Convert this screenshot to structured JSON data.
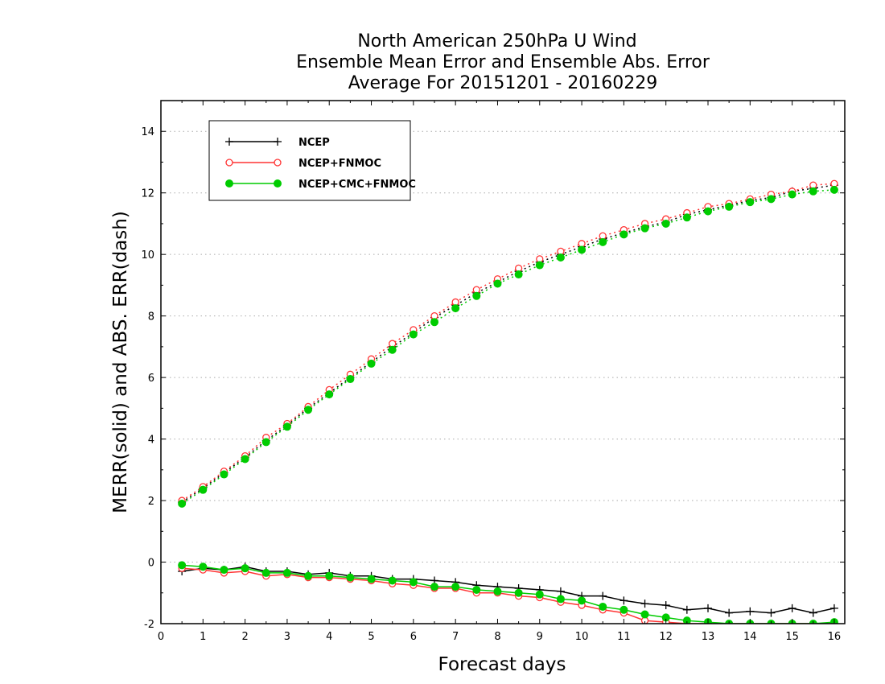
{
  "chart_data": {
    "type": "line",
    "title_lines": [
      "North American 250hPa U Wind",
      "Ensemble Mean Error and Ensemble Abs. Error",
      "Average For 20151201 - 20160229"
    ],
    "xlabel": "Forecast days",
    "ylabel": "MERR(solid) and ABS. ERR(dash)",
    "xlim": [
      0,
      16.25
    ],
    "ylim": [
      -2,
      15
    ],
    "xticks": [
      0,
      1,
      2,
      3,
      4,
      5,
      6,
      7,
      8,
      9,
      10,
      11,
      12,
      13,
      14,
      15,
      16
    ],
    "yticks": [
      -2,
      0,
      2,
      4,
      6,
      8,
      10,
      12,
      14
    ],
    "grid": "horizontal dotted",
    "legend_position": "top-left",
    "x": [
      0.5,
      1,
      1.5,
      2,
      2.5,
      3,
      3.5,
      4,
      4.5,
      5,
      5.5,
      6,
      6.5,
      7,
      7.5,
      8,
      8.5,
      9,
      9.5,
      10,
      10.5,
      11,
      11.5,
      12,
      12.5,
      13,
      13.5,
      14,
      14.5,
      15,
      15.5,
      16
    ],
    "series": [
      {
        "name": "NCEP",
        "color": "#000000",
        "marker": "plus",
        "abs_err": [
          1.95,
          2.4,
          2.9,
          3.4,
          3.95,
          4.45,
          5.0,
          5.5,
          6.0,
          6.5,
          7.0,
          7.45,
          7.95,
          8.35,
          8.75,
          9.1,
          9.45,
          9.75,
          10.0,
          10.25,
          10.5,
          10.7,
          10.9,
          11.05,
          11.3,
          11.45,
          11.6,
          11.75,
          11.85,
          12.05,
          12.15,
          12.25
        ],
        "mean_err": [
          -0.3,
          -0.2,
          -0.25,
          -0.15,
          -0.3,
          -0.3,
          -0.4,
          -0.35,
          -0.45,
          -0.45,
          -0.55,
          -0.55,
          -0.6,
          -0.65,
          -0.75,
          -0.8,
          -0.85,
          -0.9,
          -0.95,
          -1.1,
          -1.1,
          -1.25,
          -1.35,
          -1.4,
          -1.55,
          -1.5,
          -1.65,
          -1.6,
          -1.65,
          -1.5,
          -1.65,
          -1.5
        ]
      },
      {
        "name": "NCEP+FNMOC",
        "color": "#ff3333",
        "marker": "open-circle",
        "abs_err": [
          2.0,
          2.45,
          2.95,
          3.45,
          4.05,
          4.5,
          5.05,
          5.6,
          6.1,
          6.6,
          7.1,
          7.55,
          8.0,
          8.45,
          8.85,
          9.2,
          9.55,
          9.85,
          10.1,
          10.35,
          10.6,
          10.8,
          11.0,
          11.15,
          11.35,
          11.55,
          11.65,
          11.8,
          11.95,
          12.05,
          12.25,
          12.3
        ],
        "mean_err": [
          -0.2,
          -0.25,
          -0.35,
          -0.3,
          -0.45,
          -0.4,
          -0.5,
          -0.5,
          -0.55,
          -0.6,
          -0.7,
          -0.75,
          -0.85,
          -0.85,
          -1.0,
          -1.0,
          -1.1,
          -1.15,
          -1.3,
          -1.4,
          -1.55,
          -1.65,
          -1.9,
          -1.95,
          -2.0,
          -2.0,
          -2.0,
          -2.0,
          -2.0,
          -2.0,
          -2.0,
          -2.0
        ]
      },
      {
        "name": "NCEP+CMC+FNMOC",
        "color": "#00cc00",
        "marker": "filled-circle",
        "abs_err": [
          1.9,
          2.35,
          2.85,
          3.35,
          3.9,
          4.4,
          4.95,
          5.45,
          5.95,
          6.45,
          6.9,
          7.4,
          7.8,
          8.25,
          8.65,
          9.05,
          9.35,
          9.65,
          9.9,
          10.15,
          10.4,
          10.65,
          10.85,
          11.0,
          11.2,
          11.4,
          11.55,
          11.7,
          11.8,
          11.95,
          12.05,
          12.1
        ],
        "mean_err": [
          -0.1,
          -0.15,
          -0.25,
          -0.2,
          -0.35,
          -0.35,
          -0.45,
          -0.45,
          -0.5,
          -0.55,
          -0.6,
          -0.65,
          -0.8,
          -0.8,
          -0.9,
          -0.95,
          -1.0,
          -1.05,
          -1.2,
          -1.25,
          -1.45,
          -1.55,
          -1.7,
          -1.8,
          -1.9,
          -1.95,
          -2.0,
          -2.0,
          -2.0,
          -2.0,
          -2.0,
          -1.95
        ]
      }
    ]
  }
}
